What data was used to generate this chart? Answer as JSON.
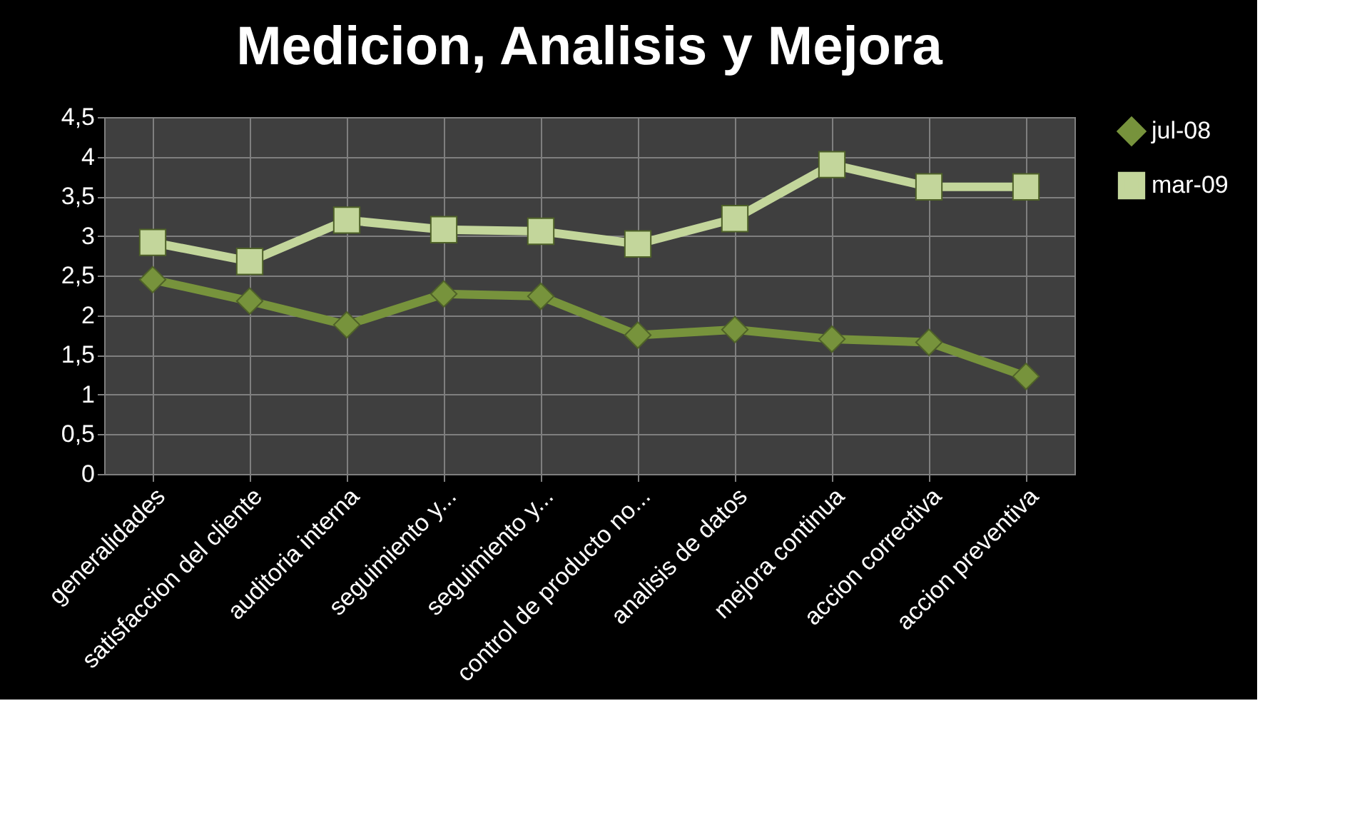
{
  "chart_data": {
    "type": "line",
    "title": "Medicion, Analisis y Mejora",
    "categories": [
      "generalidades",
      "satisfaccion del cliente",
      "auditoria  interna",
      "seguimiento y...",
      "seguimiento y...",
      "control de producto no...",
      "analisis de datos",
      "mejora continua",
      "accion correctiva",
      "accion preventiva"
    ],
    "series": [
      {
        "name": "jul-08",
        "color": "#77933c",
        "marker": "diamond",
        "values": [
          2.45,
          2.18,
          1.88,
          2.27,
          2.24,
          1.75,
          1.82,
          1.7,
          1.66,
          1.23
        ]
      },
      {
        "name": "mar-09",
        "color": "#c3d69b",
        "marker": "square",
        "values": [
          2.92,
          2.68,
          3.2,
          3.08,
          3.06,
          2.9,
          3.22,
          3.9,
          3.62,
          3.62
        ]
      }
    ],
    "ylim": [
      0,
      4.5
    ],
    "yticks": [
      0,
      {
        "value": 0.5,
        "label": "0,5"
      },
      1,
      {
        "value": 1.5,
        "label": "1,5"
      },
      2,
      {
        "value": 2.5,
        "label": "2,5"
      },
      3,
      {
        "value": 3.5,
        "label": "3,5"
      },
      4,
      {
        "value": 4.5,
        "label": "4,5"
      }
    ],
    "grid": true,
    "legend": "right",
    "line_style": "solid"
  }
}
